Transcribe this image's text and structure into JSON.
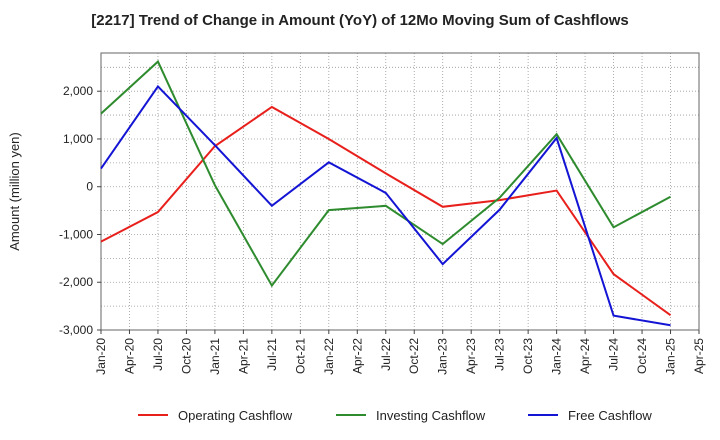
{
  "chart_data": {
    "type": "line",
    "title": "[2217]  Trend of Change in Amount (YoY) of 12Mo Moving Sum of Cashflows",
    "xlabel": "",
    "ylabel": "Amount (million yen)",
    "ylim": [
      -3000,
      2800
    ],
    "yticks": [
      -3000,
      -2000,
      -1000,
      0,
      1000,
      2000
    ],
    "ytick_labels": [
      "-3,000",
      "-2,000",
      "-1,000",
      "0",
      "1,000",
      "2,000"
    ],
    "categories": [
      "Jan-20",
      "Apr-20",
      "Jul-20",
      "Oct-20",
      "Jan-21",
      "Apr-21",
      "Jul-21",
      "Oct-21",
      "Jan-22",
      "Apr-22",
      "Jul-22",
      "Oct-22",
      "Jan-23",
      "Apr-23",
      "Jul-23",
      "Oct-23",
      "Jan-24",
      "Apr-24",
      "Jul-24",
      "Oct-24",
      "Jan-25",
      "Apr-25"
    ],
    "grid": true,
    "legend_position": "bottom",
    "series": [
      {
        "name": "Operating Cashflow",
        "color": "#e8201c",
        "points": [
          [
            "Jan-20",
            -1150
          ],
          [
            "Jul-20",
            -530
          ],
          [
            "Jan-21",
            850
          ],
          [
            "Jul-21",
            1670
          ],
          [
            "Jan-22",
            1000
          ],
          [
            "Jul-22",
            280
          ],
          [
            "Jan-23",
            -420
          ],
          [
            "Jul-23",
            -280
          ],
          [
            "Jan-24",
            -80
          ],
          [
            "Jul-24",
            -1830
          ],
          [
            "Jan-25",
            -2690
          ]
        ]
      },
      {
        "name": "Investing Cashflow",
        "color": "#2e8b2e",
        "points": [
          [
            "Jan-20",
            1530
          ],
          [
            "Jul-20",
            2620
          ],
          [
            "Jan-21",
            30
          ],
          [
            "Jul-21",
            -2070
          ],
          [
            "Jan-22",
            -490
          ],
          [
            "Jul-22",
            -400
          ],
          [
            "Jan-23",
            -1200
          ],
          [
            "Jul-23",
            -230
          ],
          [
            "Jan-24",
            1100
          ],
          [
            "Jul-24",
            -850
          ],
          [
            "Jan-25",
            -210
          ]
        ]
      },
      {
        "name": "Free Cashflow",
        "color": "#1414d4",
        "points": [
          [
            "Jan-20",
            380
          ],
          [
            "Jul-20",
            2100
          ],
          [
            "Jan-21",
            870
          ],
          [
            "Jul-21",
            -400
          ],
          [
            "Jan-22",
            510
          ],
          [
            "Jul-22",
            -130
          ],
          [
            "Jan-23",
            -1620
          ],
          [
            "Jul-23",
            -480
          ],
          [
            "Jan-24",
            1020
          ],
          [
            "Jul-24",
            -2700
          ],
          [
            "Jan-25",
            -2900
          ]
        ]
      }
    ]
  }
}
